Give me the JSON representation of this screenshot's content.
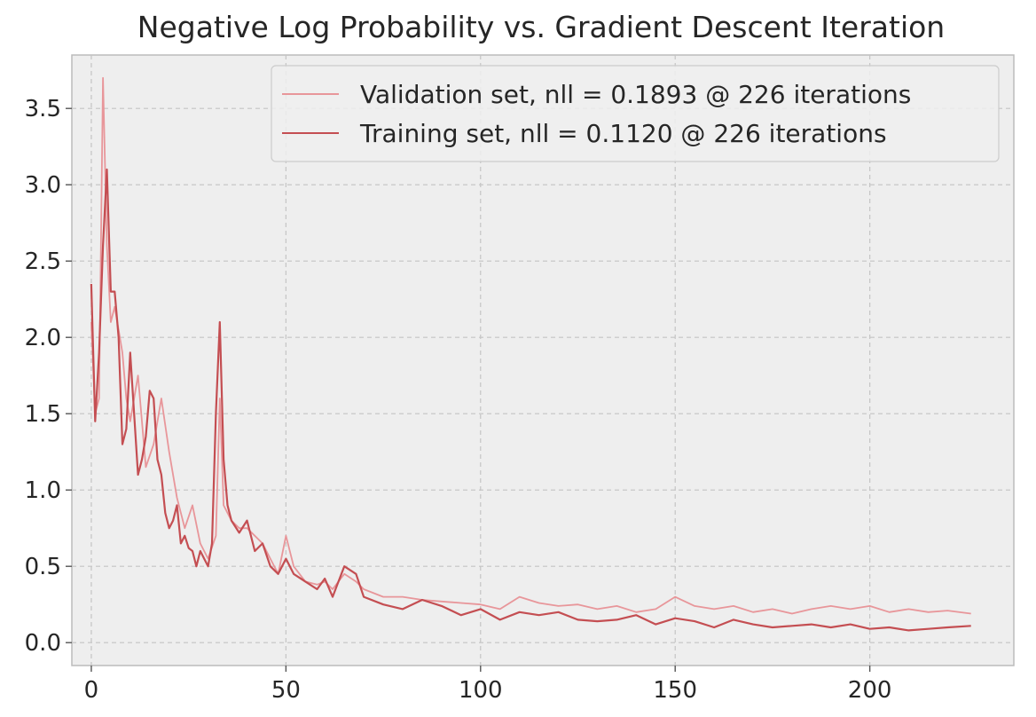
{
  "chart_data": {
    "type": "line",
    "title": "Negative Log Probability vs. Gradient Descent Iteration",
    "xlabel": "",
    "ylabel": "",
    "xlim": [
      -5,
      237
    ],
    "ylim": [
      -0.15,
      3.85
    ],
    "x_ticks": [
      0,
      50,
      100,
      150,
      200
    ],
    "y_ticks": [
      0.0,
      0.5,
      1.0,
      1.5,
      2.0,
      2.5,
      3.0,
      3.5
    ],
    "x_tick_labels": [
      "0",
      "50",
      "100",
      "150",
      "200"
    ],
    "y_tick_labels": [
      "0.0",
      "0.5",
      "1.0",
      "1.5",
      "2.0",
      "2.5",
      "3.0",
      "3.5"
    ],
    "grid": true,
    "legend_position": "top-right",
    "series": [
      {
        "name": "Validation set, nll = 0.1893 @ 226 iterations",
        "color": "#e8969a",
        "x": [
          0,
          1,
          2,
          3,
          4,
          5,
          6,
          7,
          8,
          9,
          10,
          12,
          14,
          16,
          18,
          20,
          22,
          24,
          26,
          28,
          30,
          32,
          33,
          34,
          36,
          38,
          40,
          42,
          44,
          46,
          48,
          50,
          52,
          55,
          58,
          60,
          62,
          65,
          68,
          70,
          75,
          80,
          85,
          90,
          95,
          100,
          105,
          110,
          115,
          120,
          125,
          130,
          135,
          140,
          145,
          150,
          155,
          160,
          165,
          170,
          175,
          180,
          185,
          190,
          195,
          200,
          205,
          210,
          215,
          220,
          226
        ],
        "values": [
          2.1,
          1.5,
          1.6,
          3.7,
          2.6,
          2.1,
          2.2,
          2.05,
          1.9,
          1.6,
          1.45,
          1.75,
          1.15,
          1.3,
          1.6,
          1.25,
          0.95,
          0.75,
          0.9,
          0.65,
          0.55,
          0.7,
          1.6,
          0.9,
          0.8,
          0.75,
          0.75,
          0.7,
          0.65,
          0.55,
          0.45,
          0.7,
          0.5,
          0.4,
          0.38,
          0.4,
          0.35,
          0.45,
          0.4,
          0.35,
          0.3,
          0.3,
          0.28,
          0.27,
          0.26,
          0.25,
          0.22,
          0.3,
          0.26,
          0.24,
          0.25,
          0.22,
          0.24,
          0.2,
          0.22,
          0.3,
          0.24,
          0.22,
          0.24,
          0.2,
          0.22,
          0.19,
          0.22,
          0.24,
          0.22,
          0.24,
          0.2,
          0.22,
          0.2,
          0.21,
          0.19
        ]
      },
      {
        "name": "Training set, nll = 0.1120 @ 226 iterations",
        "color": "#c44e52",
        "x": [
          0,
          1,
          2,
          3,
          4,
          5,
          6,
          7,
          8,
          9,
          10,
          11,
          12,
          13,
          14,
          15,
          16,
          17,
          18,
          19,
          20,
          21,
          22,
          23,
          24,
          25,
          26,
          27,
          28,
          29,
          30,
          31,
          32,
          33,
          34,
          35,
          36,
          38,
          40,
          42,
          44,
          46,
          48,
          50,
          52,
          55,
          58,
          60,
          62,
          65,
          68,
          70,
          75,
          80,
          85,
          90,
          95,
          100,
          105,
          110,
          115,
          120,
          125,
          130,
          135,
          140,
          145,
          150,
          155,
          160,
          165,
          170,
          175,
          180,
          185,
          190,
          195,
          200,
          205,
          210,
          215,
          220,
          226
        ],
        "values": [
          2.35,
          1.45,
          1.9,
          2.6,
          3.1,
          2.3,
          2.3,
          2.0,
          1.3,
          1.4,
          1.9,
          1.5,
          1.1,
          1.2,
          1.35,
          1.65,
          1.6,
          1.2,
          1.1,
          0.85,
          0.75,
          0.8,
          0.9,
          0.65,
          0.7,
          0.62,
          0.6,
          0.5,
          0.6,
          0.55,
          0.5,
          0.65,
          1.5,
          2.1,
          1.2,
          0.9,
          0.8,
          0.72,
          0.8,
          0.6,
          0.65,
          0.5,
          0.45,
          0.55,
          0.45,
          0.4,
          0.35,
          0.42,
          0.3,
          0.5,
          0.45,
          0.3,
          0.25,
          0.22,
          0.28,
          0.24,
          0.18,
          0.22,
          0.15,
          0.2,
          0.18,
          0.2,
          0.15,
          0.14,
          0.15,
          0.18,
          0.12,
          0.16,
          0.14,
          0.1,
          0.15,
          0.12,
          0.1,
          0.11,
          0.12,
          0.1,
          0.12,
          0.09,
          0.1,
          0.08,
          0.09,
          0.1,
          0.11
        ]
      }
    ]
  }
}
